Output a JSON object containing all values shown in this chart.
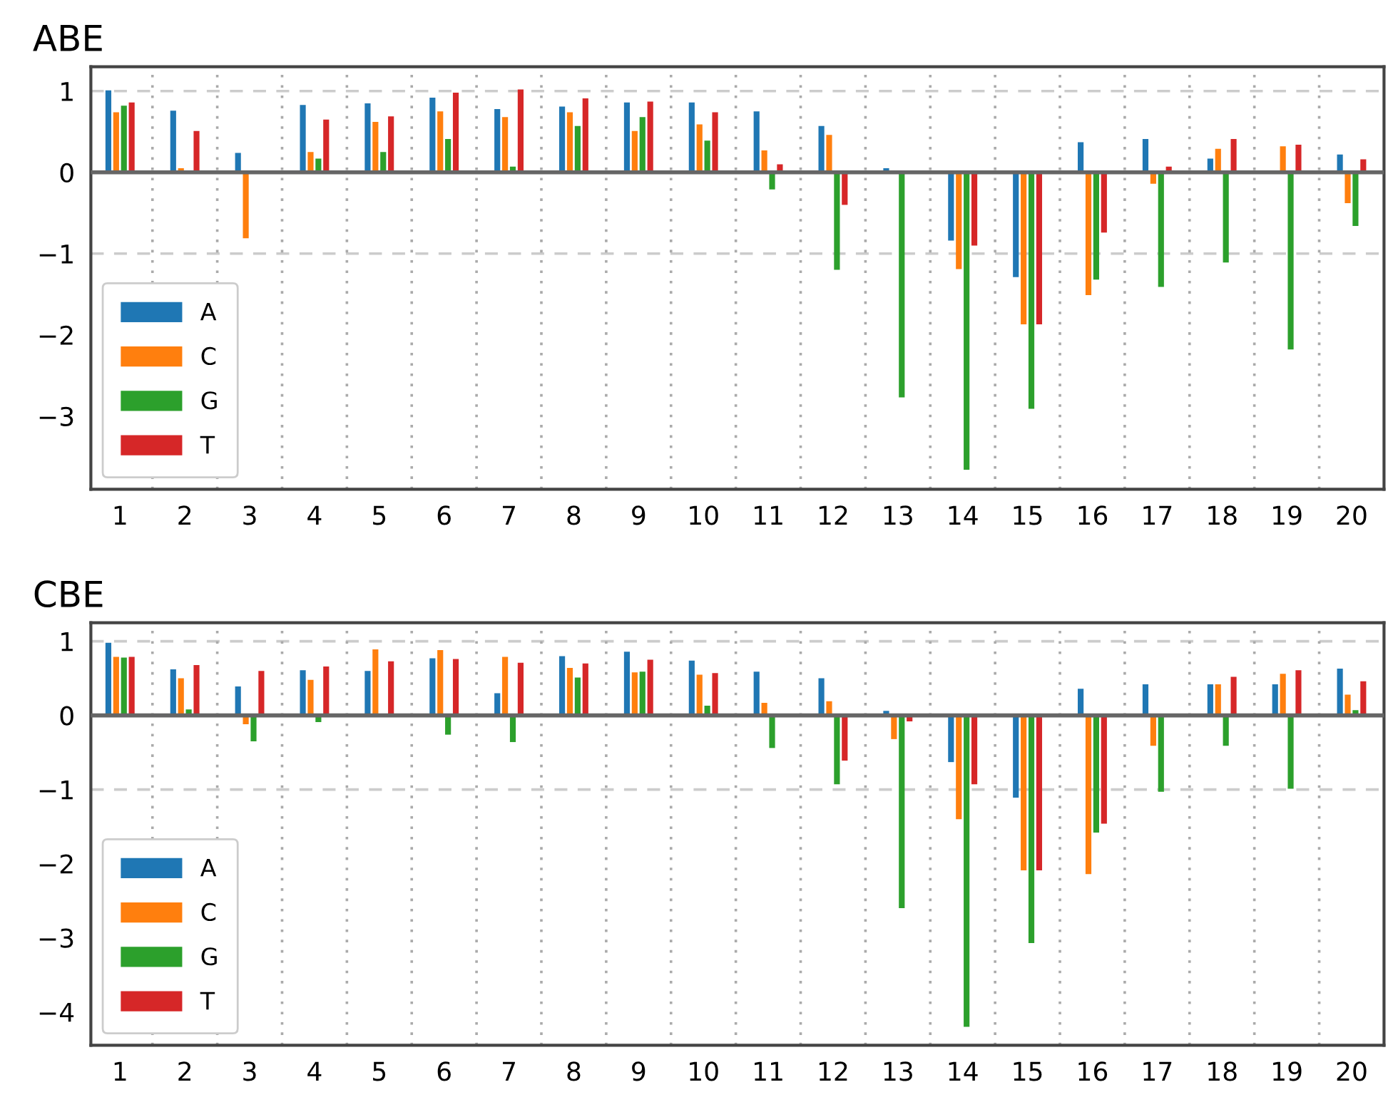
{
  "chart_data": [
    {
      "type": "bar",
      "title": "ABE",
      "x": [
        1,
        2,
        3,
        4,
        5,
        6,
        7,
        8,
        9,
        10,
        11,
        12,
        13,
        14,
        15,
        16,
        17,
        18,
        19,
        20
      ],
      "xlim": [
        0.55,
        20.5
      ],
      "xticks": [
        1,
        2,
        3,
        4,
        5,
        6,
        7,
        8,
        9,
        10,
        11,
        12,
        13,
        14,
        15,
        16,
        17,
        18,
        19,
        20
      ],
      "ylim": [
        -3.9,
        1.3
      ],
      "yticks": [
        -3,
        -2,
        -1,
        0,
        1
      ],
      "grid": false,
      "legend": "bottom left",
      "series": [
        {
          "name": "A",
          "color": "#1f77b4",
          "values": [
            1.01,
            0.76,
            0.24,
            0.83,
            0.85,
            0.92,
            0.78,
            0.81,
            0.86,
            0.86,
            0.75,
            0.57,
            0.05,
            -0.84,
            -1.29,
            0.37,
            0.41,
            0.17,
            0,
            0.22
          ]
        },
        {
          "name": "C",
          "color": "#ff7f0e",
          "values": [
            0.74,
            0.05,
            -0.81,
            0.25,
            0.62,
            0.75,
            0.68,
            0.74,
            0.51,
            0.59,
            0.27,
            0.46,
            null,
            -1.19,
            -1.87,
            -1.51,
            -0.14,
            0.29,
            0.32,
            -0.38
          ]
        },
        {
          "name": "G",
          "color": "#2ca02c",
          "values": [
            0.82,
            0,
            0,
            0.17,
            0.25,
            0.41,
            0.07,
            0.57,
            0.68,
            0.39,
            -0.21,
            -1.2,
            -2.77,
            -3.66,
            -2.91,
            -1.32,
            -1.41,
            -1.11,
            -2.18,
            -0.66
          ]
        },
        {
          "name": "T",
          "color": "#d62728",
          "values": [
            0.86,
            0.51,
            0,
            0.65,
            0.69,
            0.98,
            1.02,
            0.91,
            0.87,
            0.74,
            0.1,
            -0.4,
            null,
            -0.9,
            -1.87,
            -0.74,
            0.07,
            0.41,
            0.34,
            0.16
          ]
        }
      ],
      "ref_lines": [
        {
          "axis": "y",
          "value": 0,
          "color": "#666666",
          "line_style": "solid"
        },
        {
          "axis": "y",
          "value": 1,
          "color": "#cccccc",
          "line_style": "dashed"
        },
        {
          "axis": "y",
          "value": -1,
          "color": "#cccccc",
          "line_style": "dashed"
        },
        {
          "axis": "x",
          "value": 1.5,
          "color": "#aaaaaa",
          "line_style": "dotted"
        },
        {
          "axis": "x",
          "value": 2.5,
          "color": "#aaaaaa",
          "line_style": "dotted"
        },
        {
          "axis": "x",
          "value": 3.5,
          "color": "#aaaaaa",
          "line_style": "dotted"
        },
        {
          "axis": "x",
          "value": 4.5,
          "color": "#aaaaaa",
          "line_style": "dotted"
        },
        {
          "axis": "x",
          "value": 5.5,
          "color": "#aaaaaa",
          "line_style": "dotted"
        },
        {
          "axis": "x",
          "value": 6.5,
          "color": "#aaaaaa",
          "line_style": "dotted"
        },
        {
          "axis": "x",
          "value": 7.5,
          "color": "#aaaaaa",
          "line_style": "dotted"
        },
        {
          "axis": "x",
          "value": 8.5,
          "color": "#aaaaaa",
          "line_style": "dotted"
        },
        {
          "axis": "x",
          "value": 9.5,
          "color": "#aaaaaa",
          "line_style": "dotted"
        },
        {
          "axis": "x",
          "value": 10.5,
          "color": "#aaaaaa",
          "line_style": "dotted"
        },
        {
          "axis": "x",
          "value": 11.5,
          "color": "#aaaaaa",
          "line_style": "dotted"
        },
        {
          "axis": "x",
          "value": 12.5,
          "color": "#aaaaaa",
          "line_style": "dotted"
        },
        {
          "axis": "x",
          "value": 13.5,
          "color": "#aaaaaa",
          "line_style": "dotted"
        },
        {
          "axis": "x",
          "value": 14.5,
          "color": "#aaaaaa",
          "line_style": "dotted"
        },
        {
          "axis": "x",
          "value": 15.5,
          "color": "#aaaaaa",
          "line_style": "dotted"
        },
        {
          "axis": "x",
          "value": 16.5,
          "color": "#aaaaaa",
          "line_style": "dotted"
        },
        {
          "axis": "x",
          "value": 17.5,
          "color": "#aaaaaa",
          "line_style": "dotted"
        },
        {
          "axis": "x",
          "value": 18.5,
          "color": "#aaaaaa",
          "line_style": "dotted"
        },
        {
          "axis": "x",
          "value": 19.5,
          "color": "#aaaaaa",
          "line_style": "dotted"
        }
      ]
    },
    {
      "type": "bar",
      "title": "CBE",
      "x": [
        1,
        2,
        3,
        4,
        5,
        6,
        7,
        8,
        9,
        10,
        11,
        12,
        13,
        14,
        15,
        16,
        17,
        18,
        19,
        20
      ],
      "xlim": [
        0.55,
        20.5
      ],
      "xticks": [
        1,
        2,
        3,
        4,
        5,
        6,
        7,
        8,
        9,
        10,
        11,
        12,
        13,
        14,
        15,
        16,
        17,
        18,
        19,
        20
      ],
      "ylim": [
        -4.45,
        1.25
      ],
      "yticks": [
        -4,
        -3,
        -2,
        -1,
        0,
        1
      ],
      "grid": false,
      "legend": "bottom left",
      "series": [
        {
          "name": "A",
          "color": "#1f77b4",
          "values": [
            0.98,
            0.62,
            0.39,
            0.61,
            0.6,
            0.77,
            0.3,
            0.8,
            0.86,
            0.74,
            0.59,
            0.5,
            0.06,
            -0.63,
            -1.11,
            0.36,
            0.42,
            0.42,
            0.42,
            0.63
          ]
        },
        {
          "name": "C",
          "color": "#ff7f0e",
          "values": [
            0.79,
            0.5,
            -0.12,
            0.48,
            0.89,
            0.88,
            0.79,
            0.64,
            0.58,
            0.55,
            0.17,
            0.19,
            -0.32,
            -1.4,
            -2.09,
            -2.14,
            -0.41,
            0.42,
            0.56,
            0.28
          ]
        },
        {
          "name": "G",
          "color": "#2ca02c",
          "values": [
            0.78,
            0.08,
            -0.35,
            -0.09,
            0,
            -0.26,
            -0.36,
            0.51,
            0.59,
            0.13,
            -0.44,
            -0.93,
            -2.6,
            -4.2,
            -3.07,
            -1.58,
            -1.03,
            -0.41,
            -0.99,
            0.07
          ]
        },
        {
          "name": "T",
          "color": "#d62728",
          "values": [
            0.79,
            0.68,
            0.6,
            0.66,
            0.73,
            0.76,
            0.71,
            0.7,
            0.75,
            0.57,
            0,
            -0.61,
            -0.08,
            -0.93,
            -2.09,
            -1.46,
            0,
            0.52,
            0.61,
            0.46
          ]
        }
      ],
      "ref_lines": [
        {
          "axis": "y",
          "value": 0,
          "color": "#666666",
          "line_style": "solid"
        },
        {
          "axis": "y",
          "value": 1,
          "color": "#cccccc",
          "line_style": "dashed"
        },
        {
          "axis": "y",
          "value": -1,
          "color": "#cccccc",
          "line_style": "dashed"
        },
        {
          "axis": "x",
          "value": 1.5,
          "color": "#aaaaaa",
          "line_style": "dotted"
        },
        {
          "axis": "x",
          "value": 2.5,
          "color": "#aaaaaa",
          "line_style": "dotted"
        },
        {
          "axis": "x",
          "value": 3.5,
          "color": "#aaaaaa",
          "line_style": "dotted"
        },
        {
          "axis": "x",
          "value": 4.5,
          "color": "#aaaaaa",
          "line_style": "dotted"
        },
        {
          "axis": "x",
          "value": 5.5,
          "color": "#aaaaaa",
          "line_style": "dotted"
        },
        {
          "axis": "x",
          "value": 6.5,
          "color": "#aaaaaa",
          "line_style": "dotted"
        },
        {
          "axis": "x",
          "value": 7.5,
          "color": "#aaaaaa",
          "line_style": "dotted"
        },
        {
          "axis": "x",
          "value": 8.5,
          "color": "#aaaaaa",
          "line_style": "dotted"
        },
        {
          "axis": "x",
          "value": 9.5,
          "color": "#aaaaaa",
          "line_style": "dotted"
        },
        {
          "axis": "x",
          "value": 10.5,
          "color": "#aaaaaa",
          "line_style": "dotted"
        },
        {
          "axis": "x",
          "value": 11.5,
          "color": "#aaaaaa",
          "line_style": "dotted"
        },
        {
          "axis": "x",
          "value": 12.5,
          "color": "#aaaaaa",
          "line_style": "dotted"
        },
        {
          "axis": "x",
          "value": 13.5,
          "color": "#aaaaaa",
          "line_style": "dotted"
        },
        {
          "axis": "x",
          "value": 14.5,
          "color": "#aaaaaa",
          "line_style": "dotted"
        },
        {
          "axis": "x",
          "value": 15.5,
          "color": "#aaaaaa",
          "line_style": "dotted"
        },
        {
          "axis": "x",
          "value": 16.5,
          "color": "#aaaaaa",
          "line_style": "dotted"
        },
        {
          "axis": "x",
          "value": 17.5,
          "color": "#aaaaaa",
          "line_style": "dotted"
        },
        {
          "axis": "x",
          "value": 18.5,
          "color": "#aaaaaa",
          "line_style": "dotted"
        },
        {
          "axis": "x",
          "value": 19.5,
          "color": "#aaaaaa",
          "line_style": "dotted"
        }
      ]
    }
  ]
}
